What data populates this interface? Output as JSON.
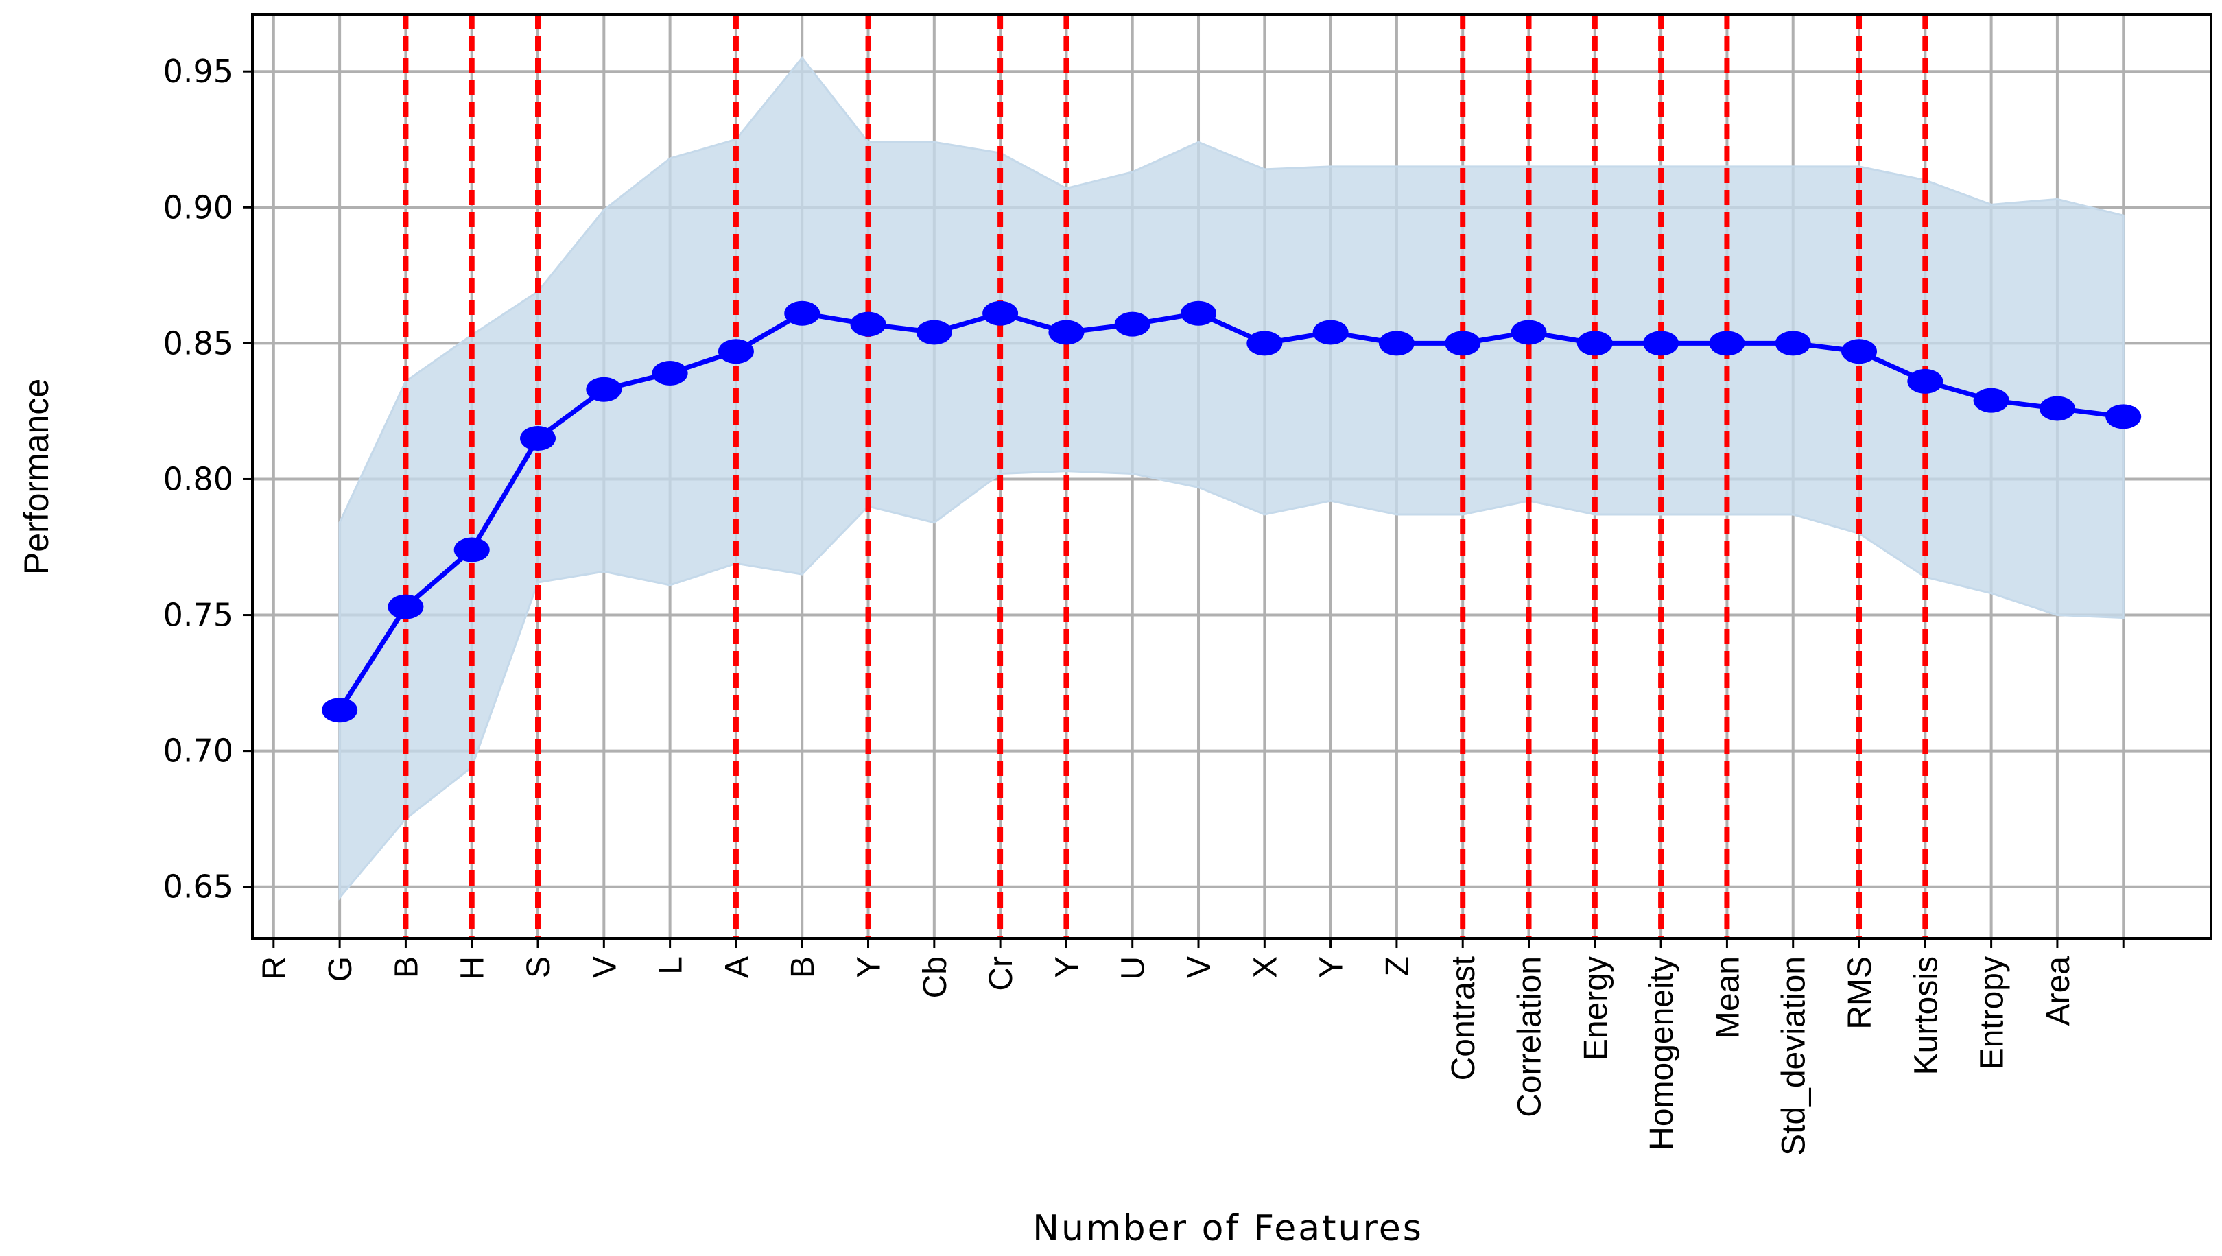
{
  "chart_data": {
    "type": "line",
    "xlabel": "Number of Features",
    "ylabel": "Performance",
    "categories": [
      "R",
      "G",
      "B",
      "H",
      "S",
      "V",
      "L",
      "A",
      "B",
      "Y",
      "Cb",
      "Cr",
      "Y",
      "U",
      "V",
      "X",
      "Y",
      "Z",
      "Contrast",
      "Correlation",
      "Energy",
      "Homogeneity",
      "Mean",
      "Std_deviation",
      "RMS",
      "Kurtosis",
      "Entropy",
      "Area",
      null
    ],
    "values": [
      null,
      0.715,
      0.753,
      0.774,
      0.815,
      0.833,
      0.839,
      0.847,
      0.861,
      0.857,
      0.854,
      0.861,
      0.854,
      0.857,
      0.861,
      0.85,
      0.854,
      0.85,
      0.85,
      0.854,
      0.85,
      0.85,
      0.85,
      0.85,
      0.847,
      0.836,
      0.829,
      0.826,
      0.823
    ],
    "band_upper": [
      null,
      0.784,
      0.836,
      0.853,
      0.869,
      0.899,
      0.918,
      0.925,
      0.955,
      0.924,
      0.924,
      0.92,
      0.907,
      0.913,
      0.924,
      0.914,
      0.915,
      0.915,
      0.915,
      0.915,
      0.915,
      0.915,
      0.915,
      0.915,
      0.915,
      0.91,
      0.901,
      0.903,
      0.897
    ],
    "band_lower": [
      null,
      0.646,
      0.675,
      0.694,
      0.762,
      0.766,
      0.761,
      0.769,
      0.765,
      0.79,
      0.784,
      0.802,
      0.803,
      0.802,
      0.797,
      0.787,
      0.792,
      0.787,
      0.787,
      0.792,
      0.787,
      0.787,
      0.787,
      0.787,
      0.78,
      0.764,
      0.758,
      0.75,
      0.749
    ],
    "color": "#0000ff",
    "band_color": "#c5d9ea",
    "highlight_categories": [
      2,
      3,
      4,
      7,
      9,
      11,
      12,
      18,
      19,
      20,
      21,
      22,
      24,
      25
    ],
    "highlight_color": "#ff0000",
    "ylim": [
      0.631,
      0.971
    ],
    "yticks": [
      0.65,
      {
        "value": 0.7,
        "label": "0.70"
      },
      0.75,
      {
        "value": 0.8,
        "label": "0.80"
      },
      0.85,
      {
        "value": 0.9,
        "label": "0.90"
      },
      0.95
    ],
    "grid": true
  }
}
